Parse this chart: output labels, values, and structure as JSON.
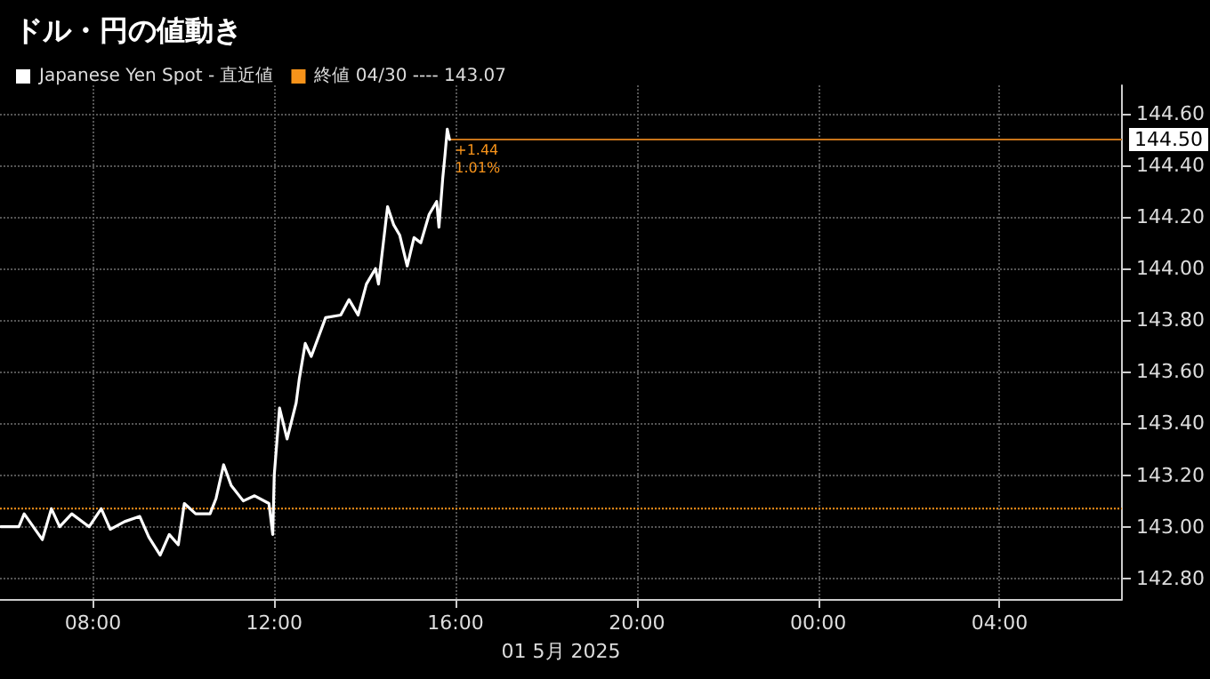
{
  "chart_data": {
    "type": "line",
    "title": "ドル・円の値動き",
    "xlabel": "01 5月 2025",
    "series": [
      {
        "name": "Japanese Yen Spot - 直近値",
        "color": "#ffffff",
        "x": [
          "2025-05-01T05:58",
          "2025-05-01T06:22",
          "2025-05-01T06:29",
          "2025-05-01T06:53",
          "2025-05-01T07:05",
          "2025-05-01T07:16",
          "2025-05-01T07:32",
          "2025-05-01T07:55",
          "2025-05-01T08:11",
          "2025-05-01T08:23",
          "2025-05-01T08:42",
          "2025-05-01T09:02",
          "2025-05-01T09:14",
          "2025-05-01T09:29",
          "2025-05-01T09:41",
          "2025-05-01T09:53",
          "2025-05-01T10:01",
          "2025-05-01T10:16",
          "2025-05-01T10:35",
          "2025-05-01T10:43",
          "2025-05-01T10:53",
          "2025-05-01T11:03",
          "2025-05-01T11:19",
          "2025-05-01T11:34",
          "2025-05-01T11:53",
          "2025-05-01T11:58",
          "2025-05-01T12:00",
          "2025-05-01T12:07",
          "2025-05-01T12:17",
          "2025-05-01T12:29",
          "2025-05-01T12:33",
          "2025-05-01T12:41",
          "2025-05-01T12:49",
          "2025-05-01T13:08",
          "2025-05-01T13:28",
          "2025-05-01T13:39",
          "2025-05-01T13:51",
          "2025-05-01T14:02",
          "2025-05-01T14:14",
          "2025-05-01T14:18",
          "2025-05-01T14:30",
          "2025-05-01T14:38",
          "2025-05-01T14:46",
          "2025-05-01T14:56",
          "2025-05-01T15:05",
          "2025-05-01T15:14",
          "2025-05-01T15:25",
          "2025-05-01T15:35",
          "2025-05-01T15:38",
          "2025-05-01T15:43",
          "2025-05-01T15:46",
          "2025-05-01T15:49",
          "2025-05-01T15:52"
        ],
        "values": [
          143.0,
          143.0,
          143.05,
          142.95,
          143.07,
          143.0,
          143.05,
          143.0,
          143.07,
          142.99,
          143.02,
          143.04,
          142.96,
          142.89,
          142.97,
          142.93,
          143.09,
          143.05,
          143.05,
          143.11,
          143.24,
          143.16,
          143.1,
          143.12,
          143.09,
          142.97,
          143.2,
          143.46,
          143.34,
          143.48,
          143.57,
          143.71,
          143.66,
          143.81,
          143.82,
          143.88,
          143.82,
          143.94,
          144.0,
          143.94,
          144.24,
          144.17,
          144.13,
          144.01,
          144.12,
          144.1,
          144.21,
          144.26,
          144.16,
          144.35,
          144.44,
          144.54,
          144.5
        ]
      }
    ],
    "xlim": [
      "2025-05-01T05:57",
      "2025-05-02T06:42"
    ],
    "xticks": [
      {
        "value": "2025-05-01T08:00",
        "label": "08:00"
      },
      {
        "value": "2025-05-01T12:00",
        "label": "12:00"
      },
      {
        "value": "2025-05-01T16:00",
        "label": "16:00"
      },
      {
        "value": "2025-05-01T20:00",
        "label": "20:00"
      },
      {
        "value": "2025-05-02T00:00",
        "label": "00:00"
      },
      {
        "value": "2025-05-02T04:00",
        "label": "04:00"
      }
    ],
    "ylim": [
      142.72,
      144.71
    ],
    "yticks": [
      {
        "value": 142.8,
        "label": "142.80"
      },
      {
        "value": 143.0,
        "label": "143.00"
      },
      {
        "value": 143.2,
        "label": "143.20"
      },
      {
        "value": 143.4,
        "label": "143.40"
      },
      {
        "value": 143.6,
        "label": "143.60"
      },
      {
        "value": 143.8,
        "label": "143.80"
      },
      {
        "value": 144.0,
        "label": "144.00"
      },
      {
        "value": 144.2,
        "label": "144.20"
      },
      {
        "value": 144.4,
        "label": "144.40"
      },
      {
        "value": 144.6,
        "label": "144.60"
      }
    ],
    "ref_lines": [
      {
        "axis": "y",
        "value": 143.07,
        "label": "終値 04/30 ---- 143.07",
        "color": "#f7931a",
        "line_style": "dotted"
      },
      {
        "axis": "y",
        "value": 144.5,
        "label": "144.50",
        "color": "#c8741a",
        "line_style": "solid"
      }
    ],
    "annotations": [
      "+1.44",
      "1.01%"
    ],
    "grid": true,
    "legend": "top left",
    "marker": "none",
    "line_style": "solid"
  }
}
